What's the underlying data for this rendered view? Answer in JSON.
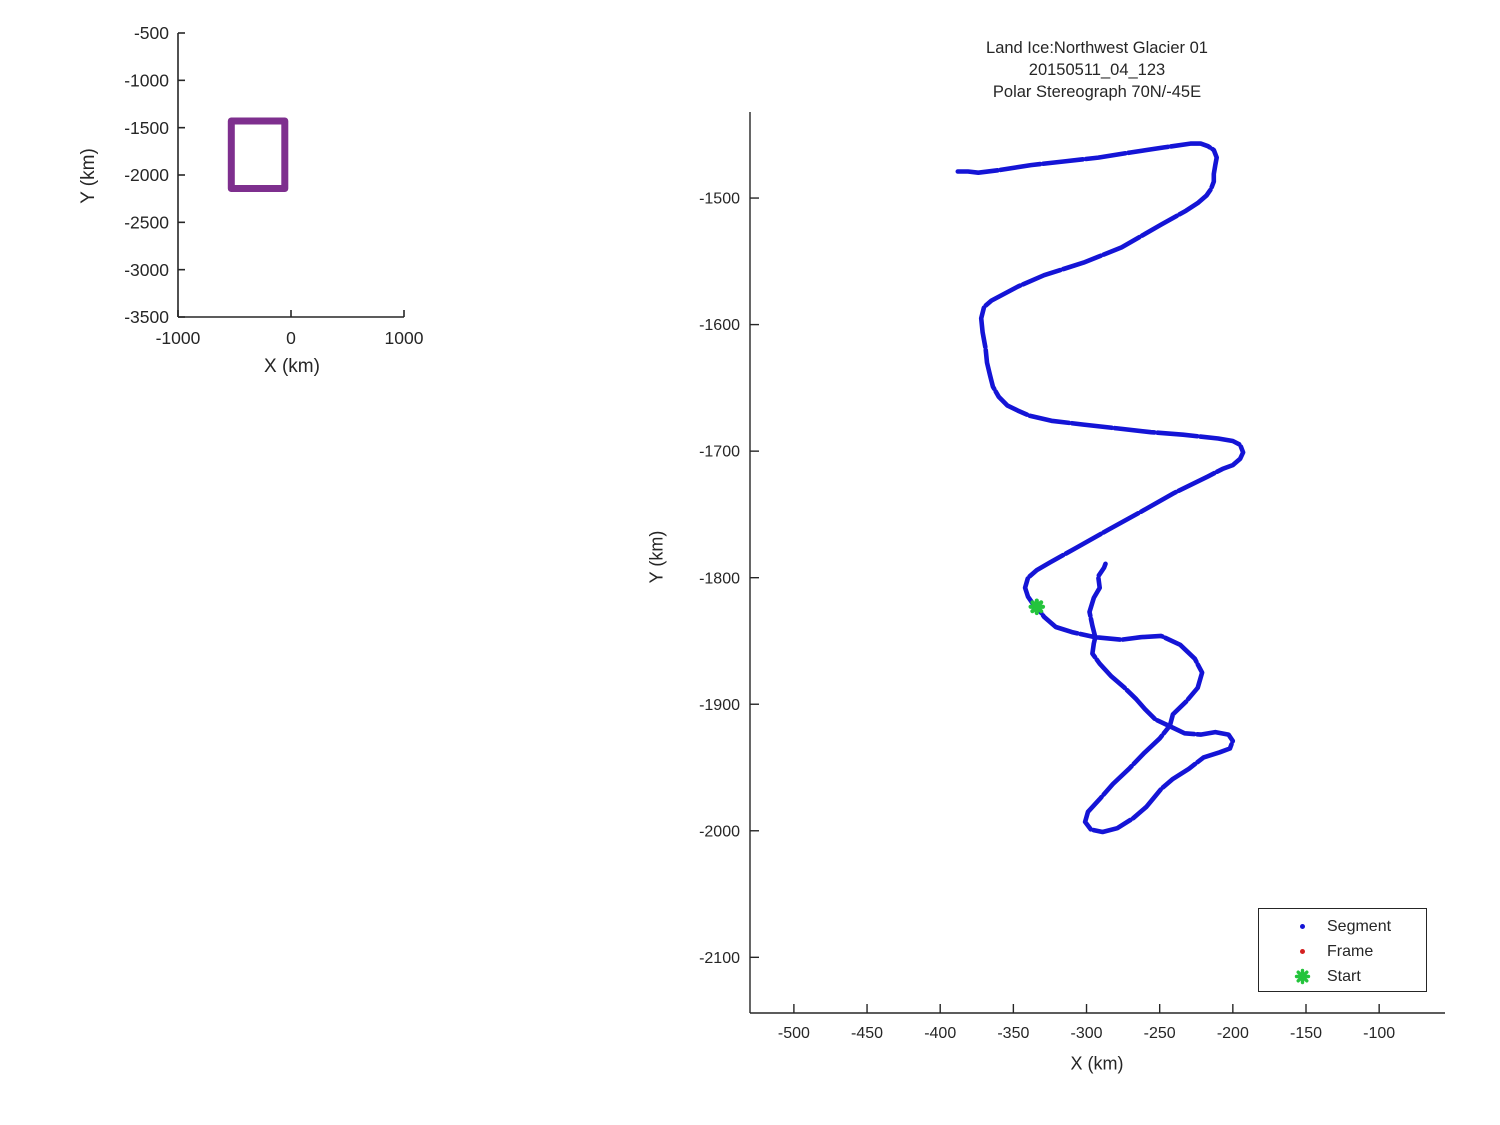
{
  "figure": {
    "background": "#FFFFFF",
    "text_color": "#262626",
    "axis_color": "#262626"
  },
  "chart_data": [
    {
      "id": "overview",
      "type": "line",
      "title": "",
      "xlabel": "X (km)",
      "ylabel": "Y (km)",
      "xlim": [
        -1000,
        1000
      ],
      "ylim": [
        -3500,
        -500
      ],
      "xticks": [
        -1000,
        0,
        1000
      ],
      "yticks": [
        -500,
        -1000,
        -1500,
        -2000,
        -2500,
        -3000,
        -3500
      ],
      "grid": false,
      "series": [
        {
          "name": "map-extent-rectangle",
          "color": "#7E2F8E",
          "line_width": 7,
          "closed": true,
          "points": [
            [
              -528,
              -1430
            ],
            [
              -55,
              -1430
            ],
            [
              -55,
              -2143
            ],
            [
              -528,
              -2143
            ]
          ]
        }
      ]
    },
    {
      "id": "main",
      "type": "line",
      "title_lines": [
        "Land Ice:Northwest Glacier 01",
        "20150511_04_123",
        "Polar Stereograph 70N/-45E"
      ],
      "xlabel": "X (km)",
      "ylabel": "Y (km)",
      "xlim": [
        -530,
        -55
      ],
      "ylim": [
        -2144,
        -1432
      ],
      "xticks": [
        -500,
        -450,
        -400,
        -350,
        -300,
        -250,
        -200,
        -150,
        -100
      ],
      "yticks": [
        -1500,
        -1600,
        -1700,
        -1800,
        -1900,
        -2000,
        -2100
      ],
      "grid": false,
      "track": {
        "name": "Segment",
        "color": "#1414D6",
        "line_width": 4.6,
        "points": [
          [
            -388,
            -1479
          ],
          [
            -381,
            -1479
          ],
          [
            -374,
            -1480
          ],
          [
            -360,
            -1478
          ],
          [
            -338,
            -1474
          ],
          [
            -315,
            -1471
          ],
          [
            -292,
            -1468
          ],
          [
            -270,
            -1464
          ],
          [
            -247,
            -1460
          ],
          [
            -229,
            -1457
          ],
          [
            -222,
            -1457
          ],
          [
            -217,
            -1459
          ],
          [
            -213,
            -1462
          ],
          [
            -211,
            -1468
          ],
          [
            -212,
            -1474
          ],
          [
            -213,
            -1481
          ],
          [
            -213,
            -1487
          ],
          [
            -215,
            -1493
          ],
          [
            -218,
            -1498
          ],
          [
            -224,
            -1504
          ],
          [
            -232,
            -1510
          ],
          [
            -249,
            -1521
          ],
          [
            -276,
            -1539
          ],
          [
            -302,
            -1551
          ],
          [
            -329,
            -1561
          ],
          [
            -347,
            -1570
          ],
          [
            -365,
            -1581
          ],
          [
            -370,
            -1586
          ],
          [
            -372,
            -1595
          ],
          [
            -371,
            -1606
          ],
          [
            -369,
            -1619
          ],
          [
            -368,
            -1630
          ],
          [
            -366,
            -1640
          ],
          [
            -364,
            -1649
          ],
          [
            -360,
            -1657
          ],
          [
            -354,
            -1664
          ],
          [
            -347,
            -1668
          ],
          [
            -339,
            -1672
          ],
          [
            -324,
            -1676
          ],
          [
            -302,
            -1679
          ],
          [
            -279,
            -1682
          ],
          [
            -256,
            -1685
          ],
          [
            -234,
            -1687
          ],
          [
            -210,
            -1690
          ],
          [
            -200,
            -1692
          ],
          [
            -195,
            -1695
          ],
          [
            -193,
            -1701
          ],
          [
            -195,
            -1706
          ],
          [
            -200,
            -1711
          ],
          [
            -207,
            -1714
          ],
          [
            -217,
            -1720
          ],
          [
            -240,
            -1733
          ],
          [
            -263,
            -1748
          ],
          [
            -285,
            -1762
          ],
          [
            -308,
            -1777
          ],
          [
            -325,
            -1788
          ],
          [
            -334,
            -1794
          ],
          [
            -340,
            -1800
          ],
          [
            -342,
            -1808
          ],
          [
            -340,
            -1815
          ],
          [
            -337,
            -1820
          ],
          [
            -334,
            -1823
          ],
          [
            -329,
            -1831
          ],
          [
            -321,
            -1839
          ],
          [
            -310,
            -1843
          ],
          [
            -294,
            -1847
          ],
          [
            -276,
            -1849
          ],
          [
            -263,
            -1847
          ],
          [
            -249,
            -1846
          ],
          [
            -236,
            -1853
          ],
          [
            -226,
            -1864
          ],
          [
            -221,
            -1875
          ],
          [
            -224,
            -1887
          ],
          [
            -232,
            -1898
          ],
          [
            -241,
            -1908
          ],
          [
            -243,
            -1917
          ],
          [
            -250,
            -1927
          ],
          [
            -261,
            -1939
          ],
          [
            -271,
            -1951
          ],
          [
            -282,
            -1963
          ],
          [
            -291,
            -1975
          ],
          [
            -299,
            -1985
          ],
          [
            -301,
            -1993
          ],
          [
            -297,
            -1999
          ],
          [
            -289,
            -2001
          ],
          [
            -279,
            -1998
          ],
          [
            -268,
            -1990
          ],
          [
            -259,
            -1981
          ],
          [
            -254,
            -1974
          ],
          [
            -249,
            -1967
          ],
          [
            -241,
            -1959
          ],
          [
            -230,
            -1951
          ],
          [
            -220,
            -1942
          ],
          [
            -209,
            -1938
          ],
          [
            -202,
            -1935
          ],
          [
            -200,
            -1929
          ],
          [
            -203,
            -1924
          ],
          [
            -212,
            -1922
          ],
          [
            -222,
            -1924
          ],
          [
            -233,
            -1923
          ],
          [
            -242,
            -1918
          ],
          [
            -253,
            -1912
          ],
          [
            -260,
            -1904
          ],
          [
            -266,
            -1896
          ],
          [
            -274,
            -1887
          ],
          [
            -283,
            -1878
          ],
          [
            -291,
            -1868
          ],
          [
            -296,
            -1860
          ],
          [
            -295,
            -1852
          ],
          [
            -294,
            -1847
          ],
          [
            -296,
            -1838
          ],
          [
            -298,
            -1827
          ],
          [
            -295,
            -1816
          ],
          [
            -291,
            -1808
          ],
          [
            -292,
            -1799
          ],
          [
            -288,
            -1792
          ],
          [
            -287,
            -1789
          ]
        ]
      },
      "start_marker": {
        "x": -334,
        "y": -1823,
        "color": "#24C43C",
        "shape": "star"
      },
      "legend": {
        "position": "bottom-right",
        "items": [
          {
            "label": "Segment",
            "marker": "dot",
            "color": "#1414D6"
          },
          {
            "label": "Frame",
            "marker": "dot",
            "color": "#D42020"
          },
          {
            "label": "Start",
            "marker": "star",
            "color": "#24C43C"
          }
        ]
      }
    }
  ]
}
